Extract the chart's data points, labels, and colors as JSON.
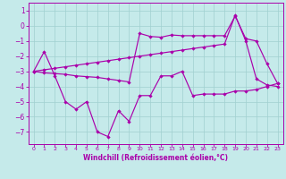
{
  "xlabel": "Windchill (Refroidissement éolien,°C)",
  "bg_color": "#c5eaea",
  "line_color": "#aa00aa",
  "grid_color": "#a0d0d0",
  "xlim": [
    -0.5,
    23.5
  ],
  "ylim": [
    -7.8,
    1.5
  ],
  "yticks": [
    -7,
    -6,
    -5,
    -4,
    -3,
    -2,
    -1,
    0,
    1
  ],
  "xticks": [
    0,
    1,
    2,
    3,
    4,
    5,
    6,
    7,
    8,
    9,
    10,
    11,
    12,
    13,
    14,
    15,
    16,
    17,
    18,
    19,
    20,
    21,
    22,
    23
  ],
  "curve_a_x": [
    0,
    1,
    2,
    3,
    4,
    5,
    6,
    7,
    8,
    9,
    10,
    11,
    12,
    13,
    14,
    15,
    16,
    17,
    18,
    19,
    20,
    21,
    22,
    23
  ],
  "curve_a_y": [
    -3.0,
    -1.7,
    -3.3,
    -5.0,
    -5.5,
    -5.0,
    -7.0,
    -7.3,
    -5.6,
    -6.3,
    -4.6,
    -4.6,
    -3.3,
    -3.3,
    -3.0,
    -4.6,
    -4.5,
    -4.5,
    -4.5,
    -4.3,
    -4.3,
    -4.2,
    -4.0,
    -3.8
  ],
  "curve_b_x": [
    0,
    1,
    2,
    3,
    4,
    5,
    6,
    7,
    8,
    9,
    10,
    11,
    12,
    13,
    14,
    15,
    16,
    17,
    18,
    19,
    20,
    21,
    22,
    23
  ],
  "curve_b_y": [
    -3.0,
    -3.1,
    -3.15,
    -3.2,
    -3.3,
    -3.35,
    -3.4,
    -3.5,
    -3.6,
    -3.7,
    -0.5,
    -0.7,
    -0.75,
    -0.6,
    -0.65,
    -0.65,
    -0.65,
    -0.65,
    -0.65,
    0.65,
    -0.85,
    -1.0,
    -2.5,
    -3.8
  ],
  "curve_c_x": [
    0,
    1,
    2,
    3,
    4,
    5,
    6,
    7,
    8,
    9,
    10,
    11,
    12,
    13,
    14,
    15,
    16,
    17,
    18,
    19,
    20,
    21,
    22,
    23
  ],
  "curve_c_y": [
    -3.0,
    -2.9,
    -2.8,
    -2.7,
    -2.6,
    -2.5,
    -2.4,
    -2.3,
    -2.2,
    -2.1,
    -2.0,
    -1.9,
    -1.8,
    -1.7,
    -1.6,
    -1.5,
    -1.4,
    -1.3,
    -1.2,
    0.7,
    -1.0,
    -3.5,
    -3.9,
    -4.0
  ]
}
